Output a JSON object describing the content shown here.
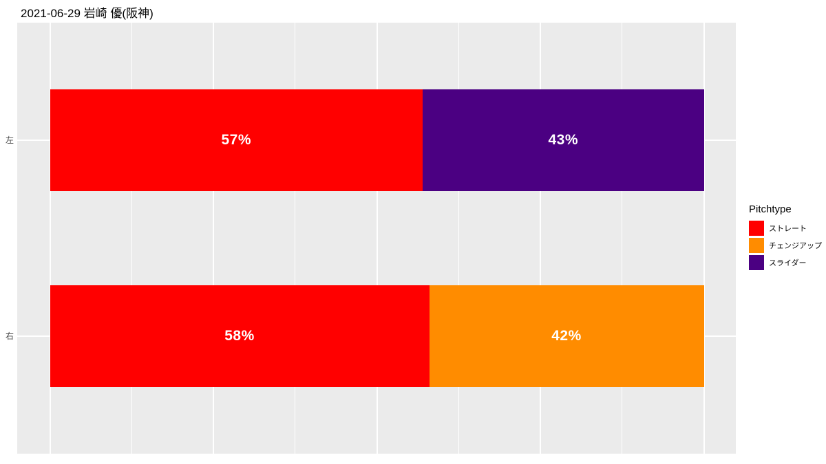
{
  "chart_data": {
    "type": "bar",
    "subtype": "horizontal-stacked-percent",
    "title": "2021-06-29 岩崎 優(阪神)",
    "categories": [
      "左",
      "右"
    ],
    "series": [
      {
        "name": "ストレート",
        "color": "#ff0000",
        "values": [
          57,
          58
        ],
        "labels": [
          "57%",
          "58%"
        ]
      },
      {
        "name": "チェンジアップ",
        "color": "#ff8c00",
        "values": [
          null,
          42
        ],
        "labels": [
          null,
          "42%"
        ]
      },
      {
        "name": "スライダー",
        "color": "#4b0082",
        "values": [
          43,
          null
        ],
        "labels": [
          "43%",
          null
        ]
      }
    ],
    "xlim": [
      0,
      100
    ],
    "x_axis_labels_visible": false,
    "stack_order": "series order, left to right",
    "grid": {
      "line_color": "#ffffff",
      "panel_background": "#ebebeb",
      "major_breaks_pct": [
        0,
        25,
        50,
        75,
        100
      ],
      "minor_breaks_pct": [
        12.5,
        37.5,
        62.5,
        87.5
      ]
    },
    "legend": {
      "title": "Pitchtype",
      "position": "right"
    }
  }
}
